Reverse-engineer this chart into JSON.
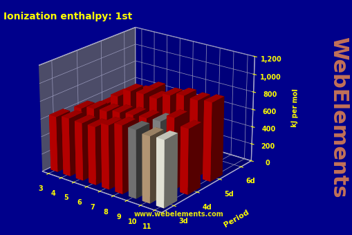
{
  "title": "Ionization enthalpy: 1st",
  "ylabel": "kJ per mol",
  "background_color": "#00008B",
  "floor_color": "#808080",
  "title_color": "#FFFF00",
  "axis_label_color": "#FFFF00",
  "tick_color": "#FFFF00",
  "watermark": "www.webelements.com",
  "watermark2": "WebElements",
  "period_label": "Period",
  "period_labels": [
    "3d",
    "4d",
    "5d",
    "6d"
  ],
  "group_labels": [
    "3",
    "4",
    "5",
    "6",
    "7",
    "8",
    "9",
    "10",
    "11"
  ],
  "zlim": [
    0,
    1200
  ],
  "zticks": [
    0,
    200,
    400,
    600,
    800,
    1000,
    1200
  ],
  "ie_data": {
    "3d": [
      631,
      658,
      650,
      653,
      717,
      762,
      760,
      737,
      745
    ],
    "4d": [
      600,
      640,
      652,
      685,
      702,
      711,
      720,
      804,
      731
    ],
    "5d": [
      524,
      658,
      761,
      770,
      760,
      840,
      880,
      870,
      890
    ],
    "6d": [
      499,
      580,
      665,
      0,
      0,
      0,
      0,
      0,
      0
    ]
  },
  "base_bar_color": "#CC0000",
  "special_bar_colors": {
    "3d_6": "#808080",
    "3d_7": "#C8A882",
    "3d_8": "#FFFFF0",
    "4d_6": "#909090"
  },
  "pane_back_color": "#000060",
  "pane_side_color": "#000070",
  "pane_floor_color": "#606060",
  "grid_color": "#9999BB",
  "spine_color": "#AAAACC"
}
